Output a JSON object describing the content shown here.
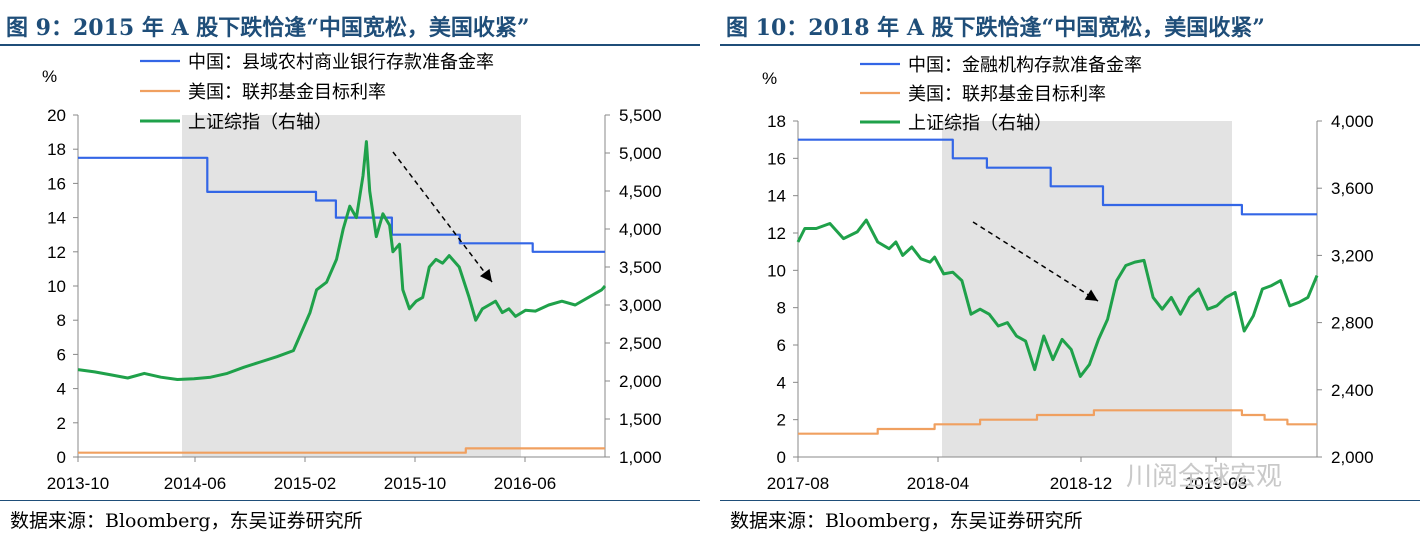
{
  "panels": [
    {
      "title": "图 9：2015 年 A 股下跌恰逢“中国宽松，美国收紧”",
      "source": "数据来源：Bloomberg，东吴证券研究所",
      "chart_data": {
        "type": "line",
        "left_unit": "%",
        "x_ticks": [
          "2013-10",
          "2014-06",
          "2015-02",
          "2015-10",
          "2016-06"
        ],
        "ylim_left": [
          0,
          20
        ],
        "yticks_left": [
          "0",
          "2",
          "4",
          "6",
          "8",
          "10",
          "12",
          "14",
          "16",
          "18",
          "20"
        ],
        "ylim_right": [
          1000,
          5500
        ],
        "yticks_right": [
          "1,000",
          "1,500",
          "2,000",
          "2,500",
          "3,000",
          "3,500",
          "4,000",
          "4,500",
          "5,000",
          "5,500"
        ],
        "shaded_region": {
          "start": "2014-06",
          "end": "2016-06"
        },
        "annotation": "dashed arrow indicating decline",
        "legend_position": "top",
        "series": [
          {
            "name": "中国：县域农村商业银行存款准备金率",
            "axis": "left",
            "color": "#3366e6",
            "step": true,
            "x": [
              0,
              0.39,
              0.39,
              0.718,
              0.718,
              0.778,
              0.778,
              0.947,
              0.947,
              1.152,
              1.152,
              1.372,
              1.372,
              1.59
            ],
            "y": [
              17.5,
              17.5,
              15.5,
              15.5,
              15.0,
              15.0,
              14.0,
              14.0,
              13.0,
              13.0,
              12.5,
              12.5,
              12.0,
              12.0
            ]
          },
          {
            "name": "美国：联邦基金目标利率",
            "axis": "left",
            "color": "#f0a060",
            "step": true,
            "x": [
              0,
              1.17,
              1.17,
              1.59
            ],
            "y": [
              0.25,
              0.25,
              0.5,
              0.5
            ]
          },
          {
            "name": "上证综指（右轴）",
            "axis": "right",
            "color": "#1fa14a",
            "x": [
              0,
              0.05,
              0.1,
              0.15,
              0.2,
              0.25,
              0.3,
              0.35,
              0.4,
              0.45,
              0.5,
              0.55,
              0.6,
              0.65,
              0.7,
              0.72,
              0.75,
              0.78,
              0.8,
              0.82,
              0.84,
              0.86,
              0.87,
              0.88,
              0.9,
              0.92,
              0.94,
              0.95,
              0.97,
              0.98,
              1.0,
              1.02,
              1.04,
              1.06,
              1.08,
              1.1,
              1.12,
              1.15,
              1.18,
              1.2,
              1.22,
              1.24,
              1.26,
              1.28,
              1.3,
              1.32,
              1.35,
              1.38,
              1.42,
              1.46,
              1.5,
              1.54,
              1.58,
              1.59
            ],
            "y": [
              2150,
              2120,
              2080,
              2040,
              2100,
              2050,
              2020,
              2030,
              2050,
              2100,
              2180,
              2250,
              2320,
              2400,
              2900,
              3200,
              3300,
              3600,
              4000,
              4300,
              4150,
              4700,
              5150,
              4500,
              3900,
              4200,
              4050,
              3700,
              3800,
              3200,
              2950,
              3050,
              3100,
              3500,
              3600,
              3550,
              3650,
              3500,
              3100,
              2800,
              2950,
              3000,
              3050,
              2900,
              2950,
              2850,
              2930,
              2920,
              3000,
              3050,
              3000,
              3100,
              3200,
              3250
            ]
          }
        ]
      }
    },
    {
      "title": "图 10：2018 年 A 股下跌恰逢“中国宽松，美国收紧”",
      "source": "数据来源：Bloomberg，东吴证券研究所",
      "chart_data": {
        "type": "line",
        "left_unit": "%",
        "x_ticks": [
          "2017-08",
          "2018-04",
          "2018-12",
          "2019-08"
        ],
        "ylim_left": [
          0,
          18
        ],
        "yticks_left": [
          "0",
          "2",
          "4",
          "6",
          "8",
          "10",
          "12",
          "14",
          "16",
          "18"
        ],
        "ylim_right": [
          2000,
          4000
        ],
        "yticks_right": [
          "2,000",
          "2,400",
          "2,800",
          "3,200",
          "3,600",
          "4,000"
        ],
        "shaded_region": {
          "start": "2018-04",
          "end": "2019-07"
        },
        "annotation": "dashed arrow indicating decline",
        "legend_position": "top",
        "series": [
          {
            "name": "中国：金融机构存款准备金率",
            "axis": "left",
            "color": "#3366e6",
            "step": true,
            "x": [
              0,
              0.68,
              0.68,
              0.83,
              0.83,
              1.11,
              1.11,
              1.34,
              1.34,
              1.95,
              1.95,
              2.28
            ],
            "y": [
              17,
              17,
              16,
              16,
              15.5,
              15.5,
              14.5,
              14.5,
              13.5,
              13.5,
              13,
              13
            ]
          },
          {
            "name": "美国：联邦基金目标利率",
            "axis": "left",
            "color": "#f0a060",
            "step": true,
            "x": [
              0,
              0.35,
              0.35,
              0.6,
              0.6,
              0.8,
              0.8,
              1.05,
              1.05,
              1.3,
              1.3,
              1.95,
              1.95,
              2.05,
              2.05,
              2.15,
              2.15,
              2.28
            ],
            "y": [
              1.25,
              1.25,
              1.5,
              1.5,
              1.75,
              1.75,
              2.0,
              2.0,
              2.25,
              2.25,
              2.5,
              2.5,
              2.25,
              2.25,
              2.0,
              2.0,
              1.75,
              1.75
            ]
          },
          {
            "name": "上证综指（右轴）",
            "axis": "right",
            "color": "#1fa14a",
            "x": [
              0,
              0.03,
              0.08,
              0.14,
              0.2,
              0.26,
              0.3,
              0.35,
              0.4,
              0.43,
              0.46,
              0.5,
              0.54,
              0.58,
              0.6,
              0.64,
              0.68,
              0.72,
              0.76,
              0.8,
              0.84,
              0.88,
              0.92,
              0.96,
              1.0,
              1.04,
              1.08,
              1.12,
              1.16,
              1.2,
              1.24,
              1.28,
              1.32,
              1.36,
              1.4,
              1.44,
              1.48,
              1.52,
              1.56,
              1.6,
              1.64,
              1.68,
              1.72,
              1.76,
              1.8,
              1.84,
              1.88,
              1.92,
              1.96,
              2.0,
              2.04,
              2.08,
              2.12,
              2.16,
              2.2,
              2.24,
              2.28
            ],
            "y": [
              3280,
              3360,
              3360,
              3390,
              3300,
              3340,
              3410,
              3280,
              3240,
              3280,
              3200,
              3250,
              3180,
              3160,
              3190,
              3090,
              3100,
              3050,
              2850,
              2880,
              2850,
              2780,
              2800,
              2720,
              2690,
              2520,
              2720,
              2580,
              2700,
              2640,
              2480,
              2550,
              2700,
              2820,
              3050,
              3140,
              3160,
              3170,
              2950,
              2880,
              2950,
              2850,
              2950,
              3000,
              2880,
              2900,
              2950,
              2980,
              2750,
              2840,
              3000,
              3020,
              3050,
              2900,
              2920,
              2950,
              3080
            ]
          }
        ]
      }
    }
  ],
  "watermark": "川阅全球宏观"
}
